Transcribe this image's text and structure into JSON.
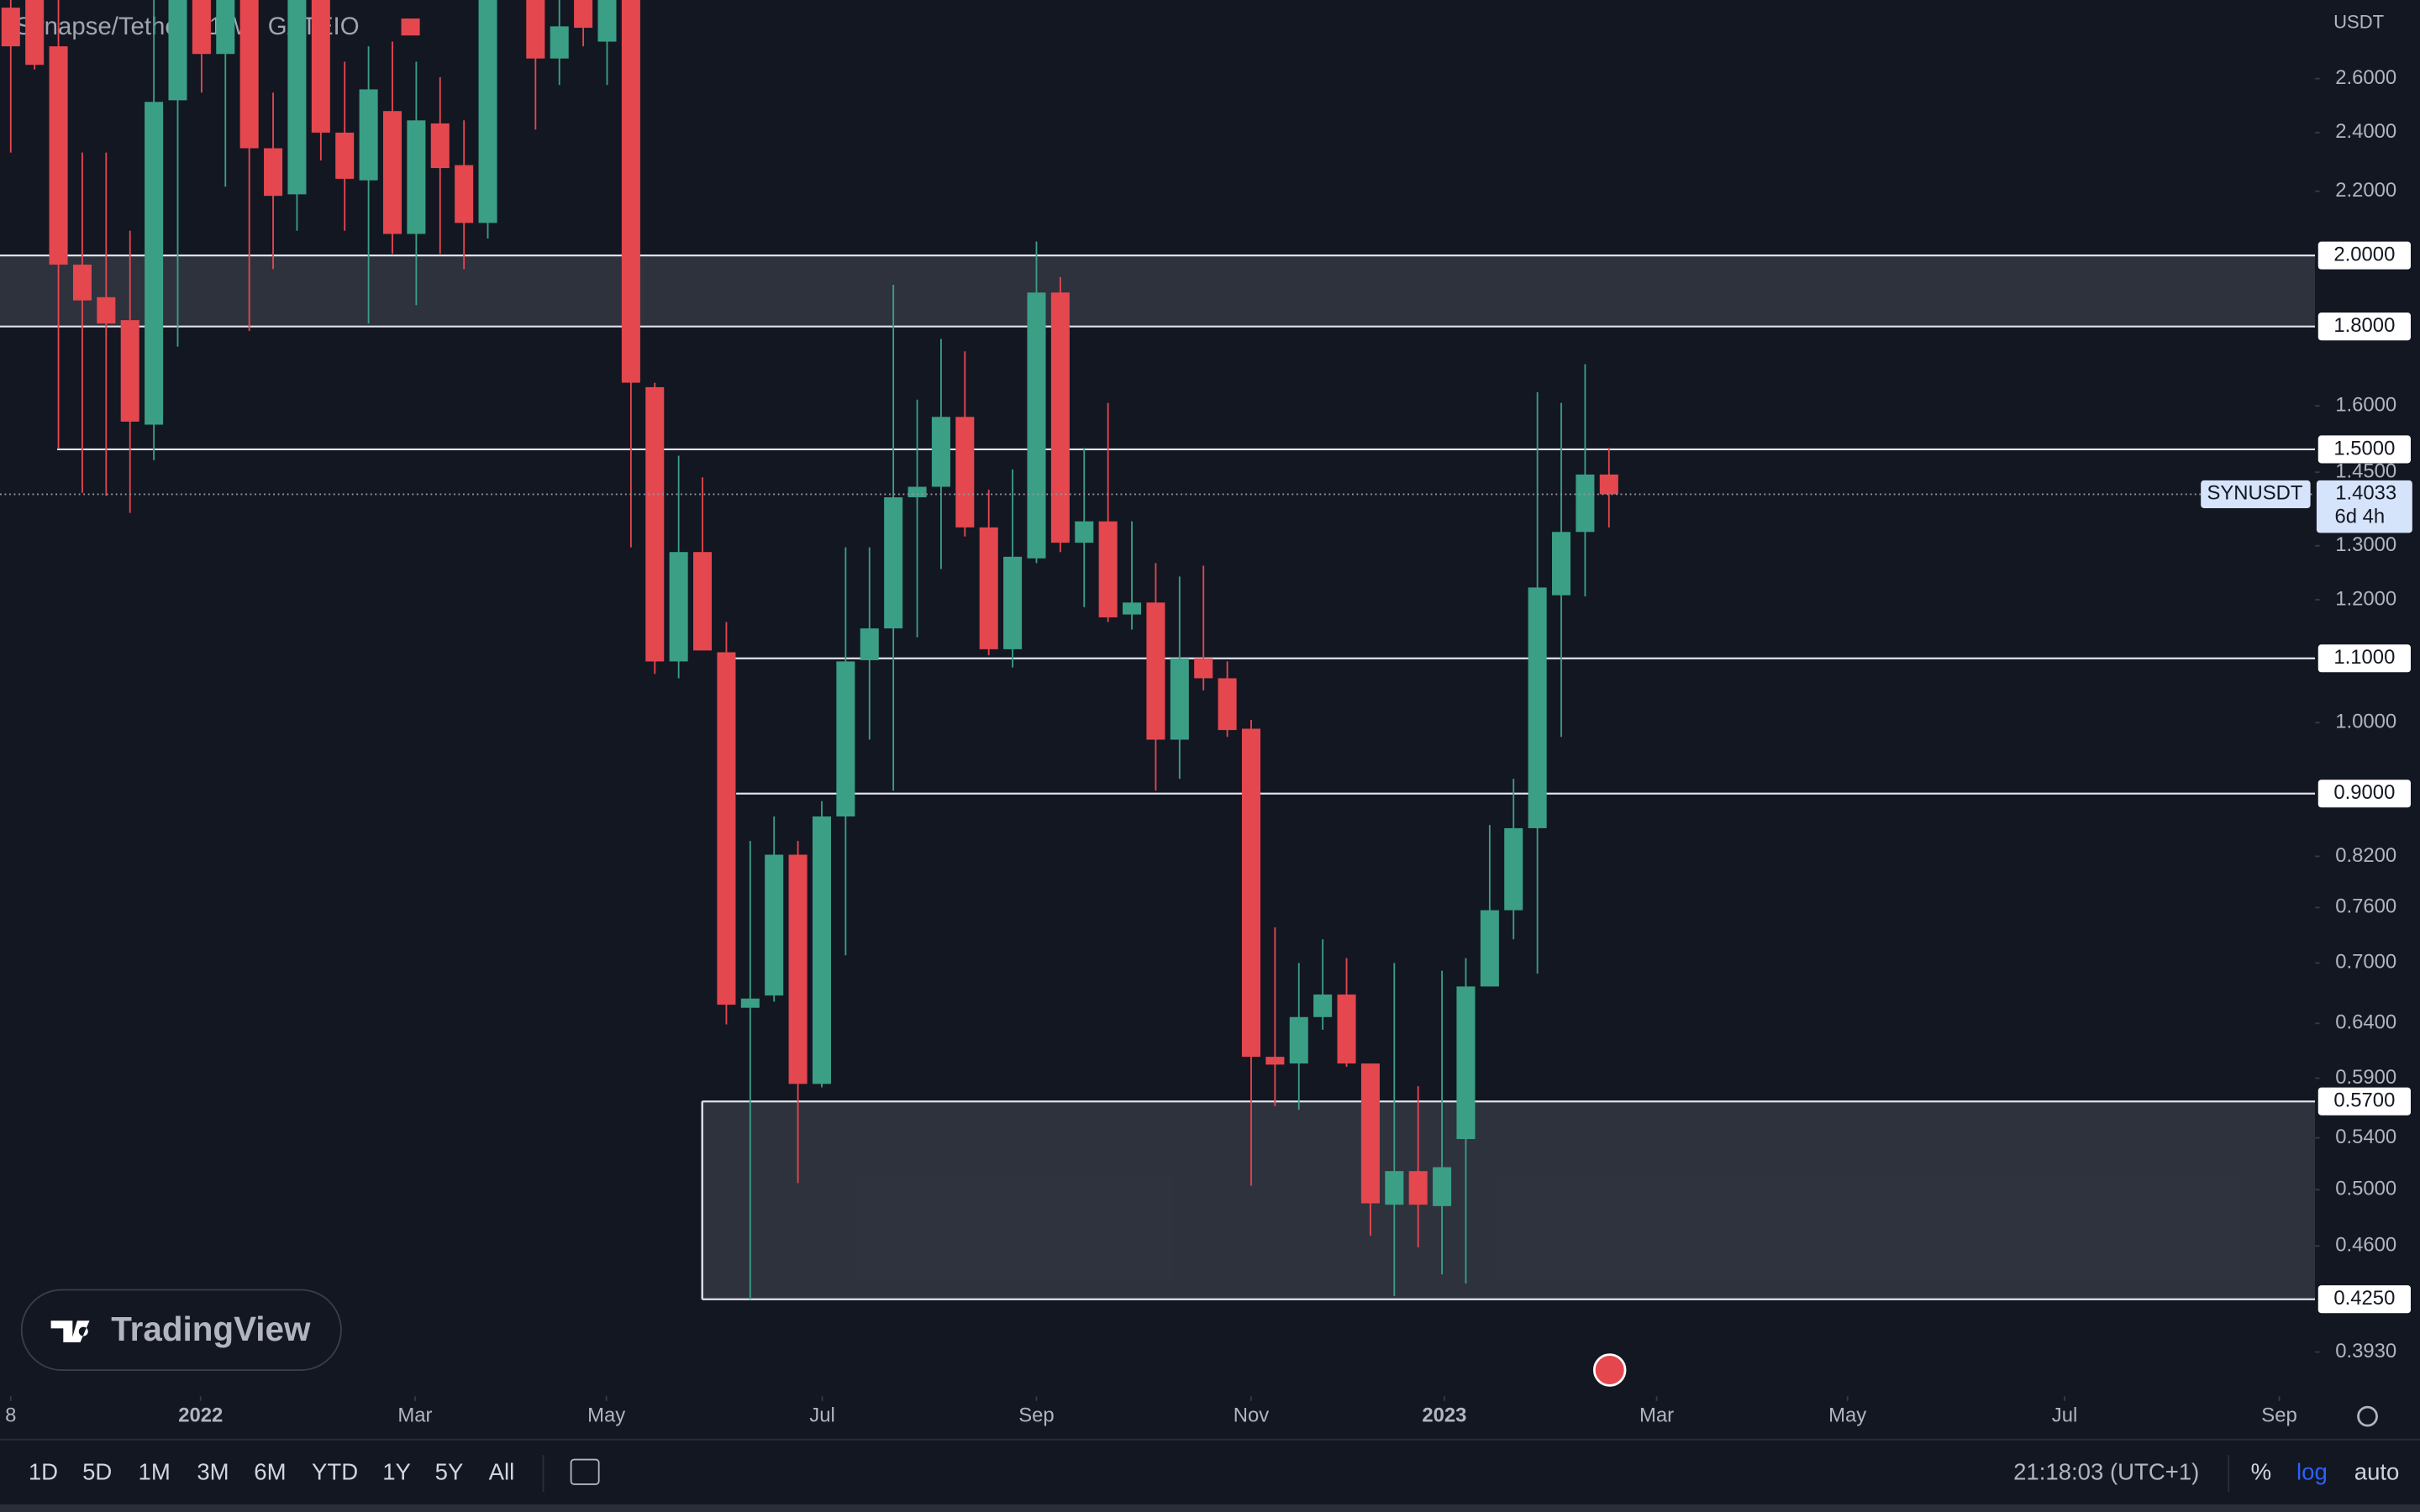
{
  "chart_data": {
    "type": "candlestick",
    "title": "Synapse/Tether · 1W · GATEIO",
    "currency": "USDT",
    "log_scale": true,
    "up_color": "#3b9f85",
    "down_color": "#e5474f",
    "ylim": [
      0.368,
      2.922
    ],
    "yticks": [
      {
        "value": 2.6,
        "label": "2.6000"
      },
      {
        "value": 2.4,
        "label": "2.4000"
      },
      {
        "value": 2.2,
        "label": "2.2000"
      },
      {
        "value": 1.6,
        "label": "1.6000"
      },
      {
        "value": 1.45,
        "label": "1.4500"
      },
      {
        "value": 1.3,
        "label": "1.3000"
      },
      {
        "value": 1.2,
        "label": "1.2000"
      },
      {
        "value": 1.0,
        "label": "1.0000"
      },
      {
        "value": 0.82,
        "label": "0.8200"
      },
      {
        "value": 0.76,
        "label": "0.7600"
      },
      {
        "value": 0.7,
        "label": "0.7000"
      },
      {
        "value": 0.64,
        "label": "0.6400"
      },
      {
        "value": 0.59,
        "label": "0.5900"
      },
      {
        "value": 0.54,
        "label": "0.5400"
      },
      {
        "value": 0.5,
        "label": "0.5000"
      },
      {
        "value": 0.46,
        "label": "0.4600"
      },
      {
        "value": 0.393,
        "label": "0.3930"
      }
    ],
    "xlim": [
      -0.45,
      96.6
    ],
    "xticks": [
      {
        "value": 0,
        "label": "8"
      },
      {
        "value": 7.96,
        "label": "2022"
      },
      {
        "value": 16.95,
        "label": "Mar"
      },
      {
        "value": 24.97,
        "label": "May"
      },
      {
        "value": 34.02,
        "label": "Jul"
      },
      {
        "value": 43.0,
        "label": "Sep"
      },
      {
        "value": 52.0,
        "label": "Nov"
      },
      {
        "value": 60.1,
        "label": "2023"
      },
      {
        "value": 69.0,
        "label": "Mar"
      },
      {
        "value": 77.0,
        "label": "May"
      },
      {
        "value": 86.1,
        "label": "Jul"
      },
      {
        "value": 95.1,
        "label": "Sep"
      }
    ],
    "open": [
      2.889,
      2.922,
      2.728,
      1.973,
      1.88,
      1.817,
      1.556,
      2.518,
      2.99,
      2.697,
      2.956,
      2.345,
      2.19,
      2.956,
      2.4,
      2.236,
      2.478,
      2.065,
      2.433,
      2.287,
      2.099,
      3.13,
      2.956,
      2.679,
      2.956,
      2.747,
      2.922,
      1.645,
      1.095,
      1.288,
      1.11,
      0.655,
      0.667,
      0.822,
      0.585,
      0.87,
      1.097,
      1.15,
      1.397,
      1.419,
      1.574,
      1.336,
      1.115,
      1.276,
      1.893,
      1.306,
      1.348,
      1.174,
      1.195,
      0.975,
      1.1,
      1.068,
      0.991,
      0.609,
      0.603,
      0.646,
      0.668,
      0.603,
      0.489,
      0.514,
      0.488,
      0.539,
      0.676,
      0.757,
      0.855,
      1.208,
      1.327,
      1.445
    ],
    "high": [
      2.922,
      2.956,
      2.922,
      2.33,
      2.33,
      2.075,
      2.922,
      3.059,
      3.059,
      3.059,
      3.059,
      2.547,
      3.059,
      3.059,
      2.666,
      2.728,
      2.747,
      2.666,
      2.606,
      2.444,
      3.059,
      3.202,
      3.059,
      2.99,
      3.059,
      3.059,
      2.99,
      1.656,
      1.486,
      1.439,
      1.161,
      0.839,
      0.87,
      0.839,
      0.89,
      1.297,
      1.297,
      1.915,
      1.615,
      1.767,
      1.735,
      1.413,
      1.456,
      2.042,
      1.937,
      1.503,
      1.607,
      1.348,
      1.267,
      1.242,
      1.262,
      1.095,
      1.004,
      0.738,
      0.7,
      0.725,
      0.705,
      0.603,
      0.7,
      0.583,
      0.692,
      0.705,
      0.859,
      0.92,
      1.633,
      1.607,
      1.702,
      1.503
    ],
    "low": [
      2.33,
      2.636,
      1.503,
      1.406,
      1.4,
      1.365,
      1.476,
      1.747,
      2.547,
      2.215,
      1.788,
      1.96,
      2.075,
      2.303,
      2.075,
      1.808,
      2.005,
      1.858,
      2.005,
      1.96,
      2.051,
      2.922,
      2.411,
      2.576,
      2.728,
      2.576,
      1.297,
      1.075,
      1.068,
      1.113,
      0.639,
      0.425,
      0.661,
      0.505,
      0.582,
      0.708,
      0.975,
      0.904,
      1.135,
      1.256,
      1.318,
      1.105,
      1.085,
      1.267,
      1.288,
      1.187,
      1.161,
      1.148,
      0.904,
      0.92,
      1.049,
      0.979,
      0.503,
      0.566,
      0.563,
      0.634,
      0.6,
      0.467,
      0.427,
      0.459,
      0.441,
      0.435,
      0.676,
      0.725,
      0.689,
      0.979,
      1.206,
      1.336
    ],
    "close": [
      2.728,
      2.654,
      1.973,
      1.871,
      1.808,
      1.563,
      2.512,
      2.99,
      2.697,
      2.99,
      2.345,
      2.185,
      2.956,
      2.4,
      2.241,
      2.559,
      2.065,
      2.444,
      2.277,
      2.099,
      2.956,
      2.99,
      2.679,
      2.81,
      2.804,
      2.956,
      1.656,
      1.095,
      1.288,
      1.113,
      0.658,
      0.664,
      0.822,
      0.585,
      0.87,
      1.095,
      1.15,
      1.397,
      1.419,
      1.574,
      1.336,
      1.115,
      1.279,
      1.893,
      1.306,
      1.348,
      1.169,
      1.195,
      0.975,
      1.1,
      1.068,
      0.989,
      0.609,
      0.602,
      0.646,
      0.668,
      0.603,
      0.49,
      0.514,
      0.489,
      0.517,
      0.676,
      0.757,
      0.855,
      1.222,
      1.327,
      1.445,
      1.4033
    ],
    "levels": [
      {
        "value": 2.0,
        "label": "2.0000"
      },
      {
        "value": 1.8,
        "label": "1.8000"
      },
      {
        "value": 1.5,
        "label": "1.5000"
      },
      {
        "value": 1.1,
        "label": "1.1000"
      },
      {
        "value": 0.9,
        "label": "0.9000"
      },
      {
        "value": 0.57,
        "label": "0.5700"
      },
      {
        "value": 0.425,
        "label": "0.4250"
      }
    ],
    "last": {
      "symbol": "SYNUSDT",
      "value": 1.4033,
      "countdown": "6d 4h"
    }
  },
  "toolbar": {
    "ranges": [
      "1D",
      "5D",
      "1M",
      "3M",
      "6M",
      "YTD",
      "1Y",
      "5Y",
      "All"
    ],
    "time": "21:18:03 (UTC+1)",
    "scale_options": [
      "%",
      "log",
      "auto"
    ]
  },
  "watermark": "TradingView"
}
